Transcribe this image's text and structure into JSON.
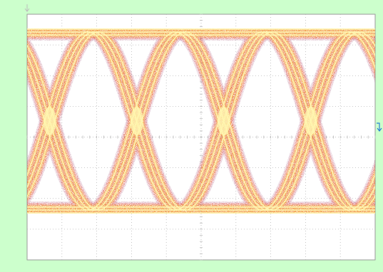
{
  "scope": {
    "type": "eye-diagram",
    "grid": true,
    "horizontal_divisions": 10,
    "vertical_divisions": 8,
    "unit_intervals_shown": 4,
    "background_color": "#ccffcc",
    "screen_color": "#ffffff",
    "grid_color": "#b8b8b8",
    "trace_colors": [
      "#8a1d4a",
      "#e8261a",
      "#ff8c1a",
      "#ffd21f",
      "#fff6b0"
    ],
    "markers": {
      "trigger_marker": "trigger-arrow-icon",
      "level_marker": "level-arrow-icon"
    }
  }
}
